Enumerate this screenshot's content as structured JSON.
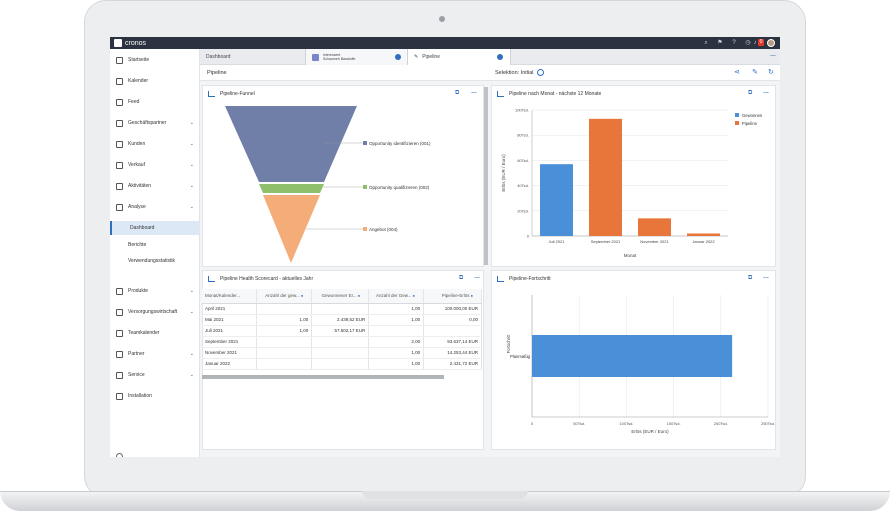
{
  "app": {
    "logo_text": "cronos"
  },
  "topbar": {
    "notification_count": "0"
  },
  "sidebar": {
    "items": [
      {
        "label": "Startseite",
        "icon": "home-icon"
      },
      {
        "label": "Kalender",
        "icon": "calendar-icon"
      },
      {
        "label": "Feed",
        "icon": "feed-icon"
      },
      {
        "label": "Geschäftspartner",
        "icon": "partner-icon"
      },
      {
        "label": "Kunden",
        "icon": "customers-icon"
      },
      {
        "label": "Verkauf",
        "icon": "sales-icon"
      },
      {
        "label": "Aktivitäten",
        "icon": "activities-icon"
      },
      {
        "label": "Analyse",
        "icon": "analysis-icon"
      },
      {
        "label": "Produkte",
        "icon": "products-icon"
      },
      {
        "label": "Versorgungswirtschaft",
        "icon": "utility-icon"
      },
      {
        "label": "Teamkalender",
        "icon": "team-calendar-icon"
      },
      {
        "label": "Partner",
        "icon": "partner-icon"
      },
      {
        "label": "Service",
        "icon": "service-icon"
      },
      {
        "label": "Installation",
        "icon": "installation-icon"
      }
    ],
    "analyse_sub": [
      "Dashboard",
      "Berichte",
      "Verwendungsstatistik"
    ]
  },
  "tabs": {
    "tab1": "Dashboard",
    "tab2_line1": "Interessent",
    "tab2_line2": "Schaumeh Baustoffe",
    "tab3": "Pipeline"
  },
  "subbar": {
    "title": "Pipeline",
    "selection": "Selektion: Initial"
  },
  "funnel": {
    "title": "Pipeline-Funnel",
    "labels": [
      "Opportunity identifizieren (001)",
      "Opportunity qualifizieren (002)",
      "Angebot (004)"
    ],
    "colors": [
      "#6f7fa8",
      "#8fbf6a",
      "#f4ac78"
    ]
  },
  "monthly": {
    "title": "Pipeline nach Monat - nächste 12 Monate",
    "xlabel": "Monat",
    "ylabel": "Erlös (EUR / Euro)"
  },
  "scorecard": {
    "title": "Pipeline Health Scorecard - aktuelles Jahr",
    "columns": [
      "Monat/Kalender...",
      "Anzahl der gew...",
      "Gewonnener Er...",
      "Anzahl der Gew...",
      "Pipeline-Erlös"
    ],
    "rows": [
      [
        "April 2021",
        "",
        "",
        "1,00",
        "100.000,00 EUR"
      ],
      [
        "Mai 2021",
        "1,00",
        "2.439,52 EUR",
        "1,00",
        "0,00"
      ],
      [
        "Juli 2021",
        "1,00",
        "57.502,17 EUR",
        "",
        ""
      ],
      [
        "September 2021",
        "",
        "",
        "2,00",
        "93.637,14 EUR"
      ],
      [
        "November 2021",
        "",
        "",
        "1,00",
        "14.253,44 EUR"
      ],
      [
        "Januar 2022",
        "",
        "",
        "1,00",
        "2.431,72 EUR"
      ]
    ]
  },
  "progress": {
    "title": "Pipeline-Fortschritt",
    "xlabel": "Erlös (EUR / Euro)",
    "ylabel": "Fortschritt"
  },
  "chart_data": [
    {
      "type": "bar",
      "title": "Pipeline nach Monat - nächste 12 Monate",
      "categories": [
        "Juli 2021",
        "September 2021",
        "November 2021",
        "Januar 2022"
      ],
      "series": [
        {
          "name": "Gewonnen",
          "color": "#4a90d9",
          "values": [
            57,
            0,
            0,
            0
          ]
        },
        {
          "name": "Pipeline",
          "color": "#e8763a",
          "values": [
            0,
            93,
            14,
            2
          ]
        }
      ],
      "xlabel": "Monat",
      "ylabel": "Erlös (EUR / Euro)",
      "yticks": [
        "0",
        "20Tsd.",
        "40Tsd.",
        "60Tsd.",
        "80Tsd.",
        "100Tsd."
      ],
      "ylim": [
        0,
        100
      ],
      "legend": "top-right",
      "grid": true
    },
    {
      "type": "bar",
      "title": "Pipeline-Fortschritt",
      "orientation": "horizontal",
      "categories": [
        "Planmäßig"
      ],
      "values": [
        212
      ],
      "color": "#4a90d9",
      "xticks": [
        "0",
        "50Tsd.",
        "100Tsd.",
        "150Tsd.",
        "200Tsd.",
        "250Tsd."
      ],
      "xlim": [
        0,
        250
      ],
      "xlabel": "Erlös (EUR / Euro)",
      "ylabel": "Fortschritt",
      "grid": true
    }
  ]
}
